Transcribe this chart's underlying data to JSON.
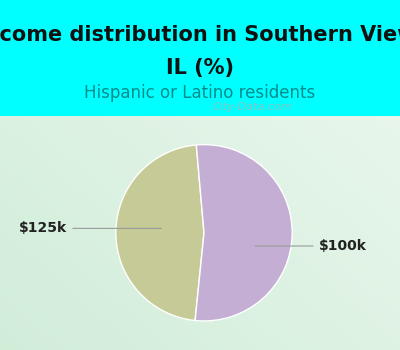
{
  "title_line1": "Income distribution in Southern View,",
  "title_line2": "IL (%)",
  "subtitle": "Hispanic or Latino residents",
  "slices": [
    47,
    53
  ],
  "labels": [
    "$125k",
    "$100k"
  ],
  "colors": [
    "#c5ca96",
    "#c4aed4"
  ],
  "bg_color_top": "#00ffff",
  "title_fontsize": 15,
  "subtitle_fontsize": 12,
  "subtitle_color": "#008b8b",
  "watermark": "City-Data.com",
  "startangle": 95,
  "label_fontsize": 10,
  "label_color": "#222222"
}
